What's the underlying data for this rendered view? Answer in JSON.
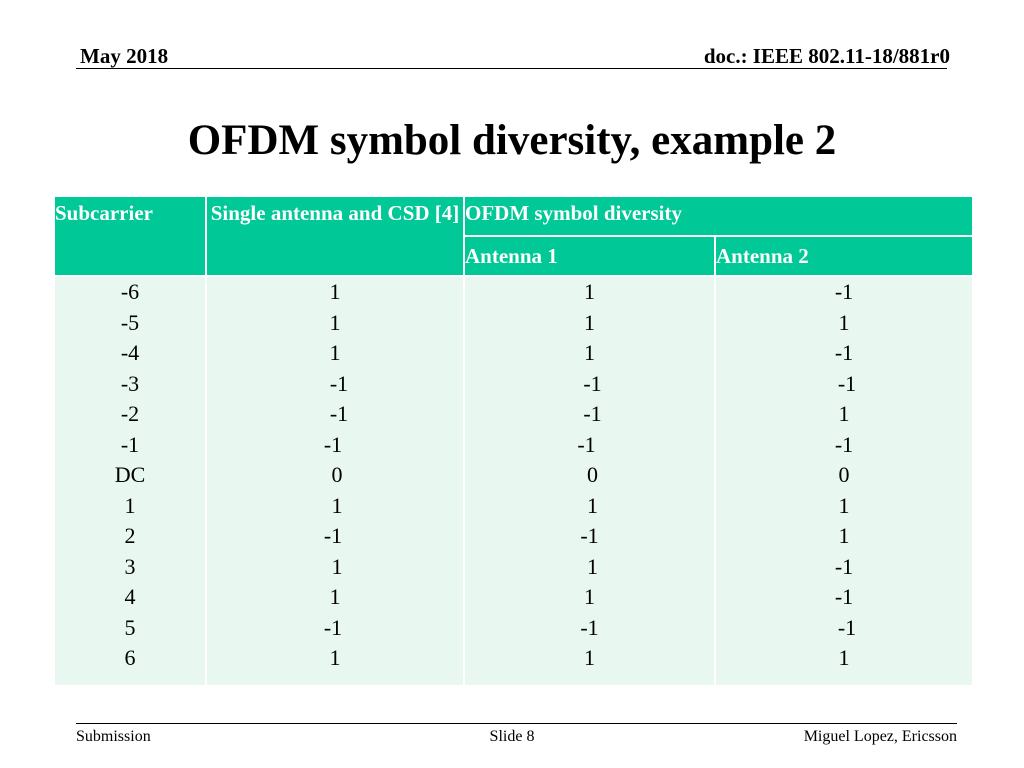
{
  "header": {
    "date": "May 2018",
    "doc": "doc.: IEEE 802.11-18/881r0"
  },
  "title": "OFDM symbol diversity, example 2",
  "colors": {
    "accent": "#00c896",
    "body_bg": "#e8f7f0"
  },
  "table": {
    "headers": {
      "subcarrier": "Subcarrier",
      "single": "Single antenna and CSD [4]",
      "ofdm": "OFDM symbol diversity",
      "antenna1": "Antenna 1",
      "antenna2": "Antenna 2"
    },
    "columns": {
      "subcarrier": [
        "-6",
        "-5",
        "-4",
        "-3",
        "-2",
        "-1",
        "DC",
        "1",
        "2",
        "3",
        "4",
        "5",
        "6"
      ],
      "single": [
        "1",
        "1",
        "1",
        "-1",
        "-1",
        "-1",
        "0",
        "1",
        "-1",
        "1",
        "1",
        "-1",
        "1"
      ],
      "antenna1": [
        "1",
        "1",
        "1",
        "-1",
        "-1",
        "-1",
        "0",
        "1",
        "-1",
        "1",
        "1",
        "-1",
        "1"
      ],
      "antenna2": [
        "-1",
        "1",
        "-1",
        "-1",
        "1",
        "-1",
        "0",
        "1",
        "1",
        "-1",
        "-1",
        "-1",
        "1"
      ]
    }
  },
  "footer": {
    "left": "Submission",
    "center": "Slide 8",
    "right": "Miguel Lopez, Ericsson"
  }
}
